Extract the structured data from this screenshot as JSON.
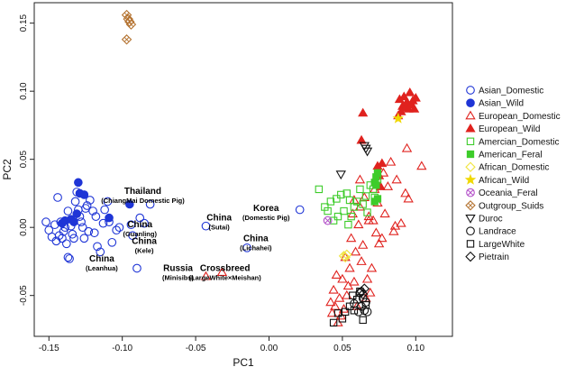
{
  "chart_data": {
    "type": "scatter",
    "title": "",
    "xlabel": "PC1",
    "ylabel": "PC2",
    "xlim": [
      -0.16,
      0.125
    ],
    "ylim": [
      -0.08,
      0.165
    ],
    "xticks": [
      -0.15,
      -0.1,
      -0.05,
      0.0,
      0.05,
      0.1
    ],
    "xtick_labels": [
      "-0.15",
      "-0.10",
      "-0.05",
      "0.00",
      "0.05",
      "0.10"
    ],
    "yticks": [
      -0.05,
      0.0,
      0.05,
      0.1,
      0.15
    ],
    "ytick_labels": [
      "-0.05",
      "0.00",
      "0.05",
      "0.10",
      "0.15"
    ],
    "legend_position": "right",
    "series": [
      {
        "name": "Asian_Domestic",
        "marker": "circle-open",
        "color": "#1f35d6",
        "points": [
          [
            -0.152,
            0.004
          ],
          [
            -0.15,
            -0.002
          ],
          [
            -0.148,
            -0.007
          ],
          [
            -0.146,
            0.002
          ],
          [
            -0.145,
            -0.01
          ],
          [
            -0.144,
            0.022
          ],
          [
            -0.143,
            -0.006
          ],
          [
            -0.142,
            0.004
          ],
          [
            -0.141,
            -0.008
          ],
          [
            -0.14,
            -0.003
          ],
          [
            -0.139,
            0.0
          ],
          [
            -0.138,
            -0.012
          ],
          [
            -0.137,
            0.012
          ],
          [
            -0.137,
            -0.022
          ],
          [
            -0.136,
            -0.023
          ],
          [
            -0.135,
            0.001
          ],
          [
            -0.134,
            -0.005
          ],
          [
            -0.133,
            -0.008
          ],
          [
            -0.132,
            0.019
          ],
          [
            -0.131,
            0.026
          ],
          [
            -0.13,
            0.013
          ],
          [
            -0.129,
            0.008
          ],
          [
            -0.128,
            0.004
          ],
          [
            -0.127,
            0.0
          ],
          [
            -0.126,
            -0.008
          ],
          [
            -0.125,
            0.014
          ],
          [
            -0.124,
            0.016
          ],
          [
            -0.123,
            -0.003
          ],
          [
            -0.122,
            0.02
          ],
          [
            -0.12,
            0.012
          ],
          [
            -0.119,
            -0.004
          ],
          [
            -0.118,
            0.008
          ],
          [
            -0.117,
            -0.014
          ],
          [
            -0.115,
            -0.018
          ],
          [
            -0.113,
            0.003
          ],
          [
            -0.112,
            0.013
          ],
          [
            -0.11,
            0.019
          ],
          [
            -0.109,
            0.004
          ],
          [
            -0.107,
            -0.011
          ],
          [
            -0.104,
            -0.002
          ],
          [
            -0.102,
            0.0
          ],
          [
            -0.094,
            0.002
          ],
          [
            -0.093,
            -0.006
          ],
          [
            -0.09,
            -0.03
          ],
          [
            -0.088,
            0.007
          ],
          [
            -0.085,
            0.003
          ],
          [
            -0.081,
            0.017
          ],
          [
            -0.043,
            0.001
          ],
          [
            -0.015,
            -0.015
          ],
          [
            0.021,
            0.013
          ]
        ]
      },
      {
        "name": "Asian_Wild",
        "marker": "circle-filled",
        "color": "#1f35d6",
        "points": [
          [
            -0.13,
            0.033
          ],
          [
            -0.129,
            0.025
          ],
          [
            -0.126,
            0.024
          ],
          [
            -0.141,
            0.003
          ],
          [
            -0.139,
            0.005
          ],
          [
            -0.135,
            0.006
          ],
          [
            -0.133,
            0.004
          ],
          [
            -0.131,
            0.01
          ],
          [
            -0.109,
            0.007
          ],
          [
            -0.095,
            0.017
          ]
        ]
      },
      {
        "name": "European_Domestic",
        "marker": "triangle-open",
        "color": "#e0221e",
        "points": [
          [
            0.104,
            0.045
          ],
          [
            0.094,
            0.058
          ],
          [
            0.093,
            0.025
          ],
          [
            0.095,
            0.021
          ],
          [
            0.09,
            0.003
          ],
          [
            0.087,
            0.035
          ],
          [
            0.086,
            0.001
          ],
          [
            0.085,
            -0.003
          ],
          [
            0.083,
            0.048
          ],
          [
            0.081,
            0.03
          ],
          [
            0.079,
            0.01
          ],
          [
            0.078,
            0.04
          ],
          [
            0.077,
            -0.008
          ],
          [
            0.075,
            -0.012
          ],
          [
            0.074,
            0.018
          ],
          [
            0.072,
            0.028
          ],
          [
            0.071,
            0.005
          ],
          [
            0.07,
            -0.03
          ],
          [
            0.069,
            -0.048
          ],
          [
            0.068,
            0.008
          ],
          [
            0.067,
            -0.038
          ],
          [
            0.066,
            -0.052
          ],
          [
            0.065,
            0.022
          ],
          [
            0.064,
            -0.013
          ],
          [
            0.063,
            -0.025
          ],
          [
            0.062,
            0.035
          ],
          [
            0.061,
            0.002
          ],
          [
            0.06,
            -0.058
          ],
          [
            0.059,
            -0.018
          ],
          [
            0.058,
            -0.04
          ],
          [
            0.057,
            0.01
          ],
          [
            0.056,
            -0.008
          ],
          [
            0.055,
            -0.03
          ],
          [
            0.054,
            -0.043
          ],
          [
            0.053,
            -0.05
          ],
          [
            0.052,
            -0.022
          ],
          [
            0.051,
            -0.06
          ],
          [
            0.05,
            -0.038
          ],
          [
            0.049,
            -0.065
          ],
          [
            0.048,
            -0.052
          ],
          [
            0.047,
            -0.07
          ],
          [
            0.046,
            -0.035
          ],
          [
            0.045,
            -0.058
          ],
          [
            0.044,
            -0.046
          ],
          [
            0.043,
            -0.063
          ],
          [
            0.042,
            -0.055
          ],
          [
            0.068,
            0.005
          ],
          [
            0.062,
            0.015
          ],
          [
            0.073,
            -0.004
          ],
          [
            0.058,
            0.02
          ],
          [
            -0.043,
            -0.036
          ],
          [
            -0.032,
            -0.033
          ]
        ]
      },
      {
        "name": "European_Wild",
        "marker": "triangle-filled",
        "color": "#e0221e",
        "points": [
          [
            0.089,
            0.094
          ],
          [
            0.091,
            0.089
          ],
          [
            0.092,
            0.096
          ],
          [
            0.093,
            0.088
          ],
          [
            0.094,
            0.092
          ],
          [
            0.095,
            0.087
          ],
          [
            0.096,
            0.099
          ],
          [
            0.097,
            0.09
          ],
          [
            0.098,
            0.093
          ],
          [
            0.099,
            0.087
          ],
          [
            0.1,
            0.095
          ],
          [
            0.088,
            0.082
          ],
          [
            0.09,
            0.085
          ],
          [
            0.064,
            0.084
          ],
          [
            0.063,
            0.064
          ],
          [
            0.075,
            0.038
          ],
          [
            0.076,
            0.03
          ],
          [
            0.074,
            0.045
          ],
          [
            0.077,
            0.047
          ]
        ]
      },
      {
        "name": "Amercian_Domestic",
        "marker": "square-open",
        "color": "#3dcc2a",
        "points": [
          [
            0.034,
            0.028
          ],
          [
            0.038,
            0.015
          ],
          [
            0.04,
            0.012
          ],
          [
            0.042,
            0.019
          ],
          [
            0.044,
            0.005
          ],
          [
            0.046,
            0.021
          ],
          [
            0.047,
            0.008
          ],
          [
            0.049,
            0.024
          ],
          [
            0.051,
            0.012
          ],
          [
            0.053,
            0.025
          ],
          [
            0.055,
            0.02
          ],
          [
            0.056,
            0.008
          ],
          [
            0.058,
            0.015
          ],
          [
            0.06,
            0.019
          ],
          [
            0.062,
            0.028
          ],
          [
            0.064,
            0.017
          ],
          [
            0.066,
            0.023
          ],
          [
            0.067,
            0.011
          ],
          [
            0.069,
            0.031
          ],
          [
            0.071,
            0.028
          ],
          [
            0.072,
            0.022
          ],
          [
            0.074,
            0.035
          ],
          [
            0.054,
            0.002
          ]
        ]
      },
      {
        "name": "American_Feral",
        "marker": "square-filled",
        "color": "#3dcc2a",
        "points": [
          [
            0.072,
            0.033
          ],
          [
            0.073,
            0.037
          ],
          [
            0.074,
            0.04
          ],
          [
            0.073,
            0.031
          ],
          [
            0.074,
            0.021
          ],
          [
            0.072,
            0.019
          ]
        ]
      },
      {
        "name": "African_Domestic",
        "marker": "diamond-open",
        "color": "#f0e43c",
        "points": [
          [
            0.052,
            -0.022
          ],
          [
            0.053,
            -0.02
          ],
          [
            0.051,
            -0.021
          ]
        ]
      },
      {
        "name": "African_Wild",
        "marker": "star-filled",
        "color": "#f0d800",
        "points": [
          [
            0.088,
            0.08
          ]
        ]
      },
      {
        "name": "Oceania_Feral",
        "marker": "circle-x",
        "color": "#b34fc9",
        "points": [
          [
            0.04,
            0.005
          ]
        ]
      },
      {
        "name": "Outgroup_Suids",
        "marker": "diamond-x",
        "color": "#b3712e",
        "points": [
          [
            -0.097,
            0.156
          ],
          [
            -0.096,
            0.153
          ],
          [
            -0.095,
            0.151
          ],
          [
            -0.094,
            0.149
          ],
          [
            -0.097,
            0.138
          ]
        ]
      },
      {
        "name": "Duroc",
        "marker": "triangle-down-open",
        "color": "#111111",
        "points": [
          [
            0.049,
            0.039
          ],
          [
            0.066,
            0.058
          ],
          [
            0.067,
            0.056
          ],
          [
            0.065,
            0.06
          ]
        ]
      },
      {
        "name": "Landrace",
        "marker": "circle-open",
        "color": "#111111",
        "points": [
          [
            0.062,
            -0.048
          ],
          [
            0.064,
            -0.052
          ],
          [
            0.066,
            -0.055
          ],
          [
            0.063,
            -0.058
          ],
          [
            0.065,
            -0.061
          ],
          [
            0.067,
            -0.062
          ],
          [
            0.061,
            -0.062
          ],
          [
            0.058,
            -0.056
          ]
        ]
      },
      {
        "name": "LargeWhite",
        "marker": "square-open",
        "color": "#111111",
        "points": [
          [
            0.044,
            -0.07
          ],
          [
            0.047,
            -0.063
          ],
          [
            0.05,
            -0.067
          ],
          [
            0.055,
            -0.058
          ],
          [
            0.057,
            -0.05
          ],
          [
            0.058,
            -0.061
          ],
          [
            0.06,
            -0.053
          ],
          [
            0.062,
            -0.047
          ],
          [
            0.064,
            -0.068
          ],
          [
            0.066,
            -0.057
          ],
          [
            0.052,
            -0.062
          ]
        ]
      },
      {
        "name": "Pietrain",
        "marker": "diamond-open",
        "color": "#111111",
        "points": [
          [
            0.063,
            -0.047
          ],
          [
            0.065,
            -0.045
          ],
          [
            0.064,
            -0.049
          ]
        ]
      }
    ],
    "annotations": [
      {
        "main": "Thailand",
        "sub": "(ChiangMai Domestic Pig)",
        "x": -0.086,
        "y": 0.0245
      },
      {
        "main": "China",
        "sub": "(Guanling)",
        "x": -0.088,
        "y": 0.0
      },
      {
        "main": "China",
        "sub": "(Sutai)",
        "x": -0.034,
        "y": 0.005
      },
      {
        "main": "Korea",
        "sub": "(Domestic Pig)",
        "x": -0.002,
        "y": 0.012
      },
      {
        "main": "China",
        "sub": "(Lichahei)",
        "x": -0.009,
        "y": -0.01
      },
      {
        "main": "China",
        "sub": "(Kele)",
        "x": -0.085,
        "y": -0.012
      },
      {
        "main": "China",
        "sub": "(Leanhua)",
        "x": -0.114,
        "y": -0.025
      },
      {
        "main": "Russia",
        "sub": "(Minisibs)",
        "x": -0.062,
        "y": -0.032
      },
      {
        "main": "Crossbreed",
        "sub": "(LargeWhite×Meishan)",
        "x": -0.03,
        "y": -0.032
      }
    ]
  }
}
